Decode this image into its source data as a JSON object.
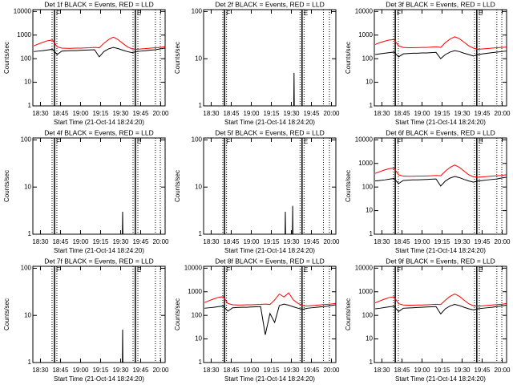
{
  "chart_data": [
    {
      "type": "line",
      "title": "Det 1f BLACK = Events, RED = LLD",
      "xlabel": "Start Time (21-Oct-14 18:24:20)",
      "ylabel": "Counts/sec",
      "log_y": true,
      "xlim": [
        24.33,
        123.3
      ],
      "ylim": [
        1,
        12000
      ],
      "xticks": [
        {
          "value": 30,
          "label": "18:30"
        },
        {
          "value": 45,
          "label": "18:45"
        },
        {
          "value": 60,
          "label": "19:00"
        },
        {
          "value": 75,
          "label": "19:15"
        },
        {
          "value": 90,
          "label": "19:30"
        },
        {
          "value": 105,
          "label": "19:45"
        },
        {
          "value": 120,
          "label": "20:00"
        }
      ],
      "yticks": [
        1,
        10,
        100,
        1000,
        10000
      ],
      "x": [
        25,
        28.5,
        32,
        35.5,
        39,
        42.5,
        46,
        49.5,
        53,
        56.5,
        60,
        63.5,
        67,
        70.5,
        74,
        77.5,
        81,
        84.5,
        88,
        91.5,
        95,
        98.5,
        102,
        105.5,
        109,
        112.5,
        116,
        119.5,
        123
      ],
      "series": [
        {
          "color": "#000000",
          "values": [
            200,
            210,
            220,
            235,
            250,
            150,
            210,
            215,
            220,
            220,
            225,
            230,
            235,
            240,
            120,
            200,
            260,
            300,
            270,
            230,
            200,
            180,
            200,
            210,
            220,
            230,
            240,
            260,
            280
          ]
        },
        {
          "color": "#ff0000",
          "values": [
            350,
            420,
            500,
            580,
            620,
            320,
            280,
            275,
            275,
            280,
            280,
            285,
            290,
            300,
            290,
            450,
            650,
            820,
            650,
            450,
            320,
            260,
            250,
            260,
            270,
            280,
            290,
            300,
            320
          ]
        }
      ],
      "markers": [
        {
          "label": "F",
          "x": 40.5
        },
        {
          "label": "E",
          "x": 101
        }
      ],
      "dotted_x": [
        38.7,
        42.3,
        99.3,
        102.9,
        116,
        119.7
      ]
    },
    {
      "type": "line",
      "title": "Det 2f BLACK = Events, RED = LLD",
      "xlabel": "Start Time (21-Oct-14 18:24:20)",
      "ylabel": "Counts/sec",
      "log_y": true,
      "xlim": [
        24.33,
        123.3
      ],
      "ylim": [
        1,
        110
      ],
      "xticks": [
        {
          "value": 30,
          "label": "18:30"
        },
        {
          "value": 45,
          "label": "18:45"
        },
        {
          "value": 60,
          "label": "19:00"
        },
        {
          "value": 75,
          "label": "19:15"
        },
        {
          "value": 90,
          "label": "19:30"
        },
        {
          "value": 105,
          "label": "19:45"
        },
        {
          "value": 120,
          "label": "20:00"
        }
      ],
      "yticks": [
        1,
        10,
        100
      ],
      "x": [
        91.8,
        92,
        92.2
      ],
      "series": [
        {
          "color": "#000000",
          "values": [
            1,
            5,
            1
          ]
        }
      ],
      "markers": [
        {
          "label": "F",
          "x": 40
        },
        {
          "label": "E",
          "x": 98
        }
      ],
      "dotted_x": [
        38.7,
        41.5,
        96.5,
        99.5,
        114,
        118.5
      ]
    },
    {
      "type": "line",
      "title": "Det 3f BLACK = Events, RED = LLD",
      "xlabel": "Start Time (21-Oct-14 18:24:20)",
      "ylabel": "Counts/sec",
      "log_y": true,
      "xlim": [
        24.33,
        123.3
      ],
      "ylim": [
        1,
        12000
      ],
      "xticks": [
        {
          "value": 30,
          "label": "18:30"
        },
        {
          "value": 45,
          "label": "18:45"
        },
        {
          "value": 60,
          "label": "19:00"
        },
        {
          "value": 75,
          "label": "19:15"
        },
        {
          "value": 90,
          "label": "19:30"
        },
        {
          "value": 105,
          "label": "19:45"
        },
        {
          "value": 120,
          "label": "20:00"
        }
      ],
      "yticks": [
        1,
        10,
        100,
        1000,
        10000
      ],
      "x": [
        25,
        28.5,
        32,
        35.5,
        39,
        42.5,
        46,
        49.5,
        53,
        56.5,
        60,
        63.5,
        67,
        70.5,
        74,
        77.5,
        81,
        84.5,
        88,
        91.5,
        95,
        98.5,
        102,
        105.5,
        109,
        112.5,
        116,
        119.5,
        123
      ],
      "series": [
        {
          "color": "#000000",
          "values": [
            150,
            160,
            170,
            180,
            190,
            120,
            160,
            165,
            170,
            170,
            175,
            175,
            180,
            185,
            100,
            150,
            190,
            220,
            200,
            170,
            150,
            130,
            150,
            160,
            170,
            180,
            190,
            200,
            210
          ]
        },
        {
          "color": "#ff0000",
          "values": [
            400,
            480,
            550,
            620,
            650,
            350,
            300,
            290,
            290,
            295,
            300,
            300,
            310,
            320,
            300,
            480,
            680,
            850,
            700,
            500,
            350,
            280,
            250,
            260,
            270,
            280,
            290,
            300,
            310
          ]
        }
      ],
      "markers": [
        {
          "label": "F",
          "x": 40
        },
        {
          "label": "E",
          "x": 101
        }
      ],
      "dotted_x": [
        38.7,
        42.3,
        99.3,
        102.9,
        116,
        119.7
      ]
    },
    {
      "type": "line",
      "title": "Det 4f BLACK = Events, RED = LLD",
      "xlabel": "Start Time (21-Oct-14 18:24:20)",
      "ylabel": "Counts/sec",
      "log_y": true,
      "xlim": [
        24.33,
        123.3
      ],
      "ylim": [
        1,
        110
      ],
      "xticks": [
        {
          "value": 30,
          "label": "18:30"
        },
        {
          "value": 45,
          "label": "18:45"
        },
        {
          "value": 60,
          "label": "19:00"
        },
        {
          "value": 75,
          "label": "19:15"
        },
        {
          "value": 90,
          "label": "19:30"
        },
        {
          "value": 105,
          "label": "19:45"
        },
        {
          "value": 120,
          "label": "20:00"
        }
      ],
      "yticks": [
        1,
        10,
        100
      ],
      "x": [
        91.3,
        91.5,
        91.7
      ],
      "series": [
        {
          "color": "#000000",
          "values": [
            1,
            3,
            1
          ]
        }
      ],
      "markers": [
        {
          "label": "F",
          "x": 40.5
        },
        {
          "label": "E",
          "x": 101
        }
      ],
      "dotted_x": [
        38.7,
        42.3,
        99.3,
        102.9,
        116,
        119.7
      ]
    },
    {
      "type": "line",
      "title": "Det 5f BLACK = Events, RED = LLD",
      "xlabel": "Start Time (21-Oct-14 18:24:20)",
      "ylabel": "Counts/sec",
      "log_y": true,
      "xlim": [
        24.33,
        123.3
      ],
      "ylim": [
        1,
        110
      ],
      "xticks": [
        {
          "value": 30,
          "label": "18:30"
        },
        {
          "value": 45,
          "label": "18:45"
        },
        {
          "value": 60,
          "label": "19:00"
        },
        {
          "value": 75,
          "label": "19:15"
        },
        {
          "value": 90,
          "label": "19:30"
        },
        {
          "value": 105,
          "label": "19:45"
        },
        {
          "value": 120,
          "label": "20:00"
        }
      ],
      "yticks": [
        1,
        10,
        100
      ],
      "x": [
        85.3,
        85.5,
        85.7,
        90.8,
        91,
        91.2
      ],
      "series": [
        {
          "color": "#000000",
          "values": [
            1,
            3,
            1,
            1,
            4,
            1
          ]
        }
      ],
      "markers": [
        {
          "label": "F",
          "x": 40
        },
        {
          "label": "E",
          "x": 98
        }
      ],
      "dotted_x": [
        38.7,
        41.5,
        96.5,
        99.5,
        114,
        118.5
      ]
    },
    {
      "type": "line",
      "title": "Det 6f BLACK = Events, RED = LLD",
      "xlabel": "Start Time (21-Oct-14 18:24:20)",
      "ylabel": "Counts/sec",
      "log_y": true,
      "xlim": [
        24.33,
        123.3
      ],
      "ylim": [
        1,
        12000
      ],
      "xticks": [
        {
          "value": 30,
          "label": "18:30"
        },
        {
          "value": 45,
          "label": "18:45"
        },
        {
          "value": 60,
          "label": "19:00"
        },
        {
          "value": 75,
          "label": "19:15"
        },
        {
          "value": 90,
          "label": "19:30"
        },
        {
          "value": 105,
          "label": "19:45"
        },
        {
          "value": 120,
          "label": "20:00"
        }
      ],
      "yticks": [
        1,
        10,
        100,
        1000,
        10000
      ],
      "x": [
        25,
        28.5,
        32,
        35.5,
        39,
        42.5,
        46,
        49.5,
        53,
        56.5,
        60,
        63.5,
        67,
        70.5,
        74,
        77.5,
        81,
        84.5,
        88,
        91.5,
        95,
        98.5,
        102,
        105.5,
        109,
        112.5,
        116,
        119.5,
        123
      ],
      "series": [
        {
          "color": "#000000",
          "values": [
            180,
            190,
            200,
            215,
            230,
            140,
            190,
            195,
            200,
            200,
            205,
            210,
            215,
            220,
            110,
            180,
            240,
            280,
            250,
            210,
            180,
            160,
            180,
            190,
            200,
            210,
            220,
            240,
            260
          ]
        },
        {
          "color": "#ff0000",
          "values": [
            380,
            450,
            530,
            600,
            640,
            330,
            290,
            285,
            285,
            290,
            290,
            295,
            300,
            310,
            300,
            470,
            680,
            860,
            680,
            470,
            330,
            270,
            260,
            270,
            280,
            290,
            300,
            310,
            330
          ]
        }
      ],
      "markers": [
        {
          "label": "F",
          "x": 40
        },
        {
          "label": "E",
          "x": 101
        }
      ],
      "dotted_x": [
        38.7,
        42.3,
        99.3,
        102.9,
        116,
        119.7
      ]
    },
    {
      "type": "line",
      "title": "Det 7f BLACK = Events, RED = LLD",
      "xlabel": "Start Time (21-Oct-14 18:24:20)",
      "ylabel": "Counts/sec",
      "log_y": true,
      "xlim": [
        24.33,
        123.3
      ],
      "ylim": [
        1,
        110
      ],
      "xticks": [
        {
          "value": 30,
          "label": "18:30"
        },
        {
          "value": 45,
          "label": "18:45"
        },
        {
          "value": 60,
          "label": "19:00"
        },
        {
          "value": 75,
          "label": "19:15"
        },
        {
          "value": 90,
          "label": "19:30"
        },
        {
          "value": 105,
          "label": "19:45"
        },
        {
          "value": 120,
          "label": "20:00"
        }
      ],
      "yticks": [
        1,
        10,
        100
      ],
      "x": [
        91.3,
        91.5,
        91.7
      ],
      "series": [
        {
          "color": "#000000",
          "values": [
            1,
            5,
            1
          ]
        }
      ],
      "markers": [
        {
          "label": "F",
          "x": 40.5
        },
        {
          "label": "E",
          "x": 101
        }
      ],
      "dotted_x": [
        38.7,
        42.3,
        99.3,
        102.9,
        116,
        119.7
      ]
    },
    {
      "type": "line",
      "title": "Det 8f BLACK = Events, RED = LLD",
      "xlabel": "Start Time (21-Oct-14 18:24:20)",
      "ylabel": "Counts/sec",
      "log_y": true,
      "xlim": [
        24.33,
        123.3
      ],
      "ylim": [
        1,
        12000
      ],
      "xticks": [
        {
          "value": 30,
          "label": "18:30"
        },
        {
          "value": 45,
          "label": "18:45"
        },
        {
          "value": 60,
          "label": "19:00"
        },
        {
          "value": 75,
          "label": "19:15"
        },
        {
          "value": 90,
          "label": "19:30"
        },
        {
          "value": 105,
          "label": "19:45"
        },
        {
          "value": 120,
          "label": "20:00"
        }
      ],
      "yticks": [
        1,
        10,
        100,
        1000,
        10000
      ],
      "x": [
        25,
        28.5,
        32,
        35.5,
        39,
        42.5,
        46,
        49.5,
        53,
        56.5,
        60,
        63.5,
        67,
        70.5,
        74,
        77.5,
        81,
        84.5,
        88,
        91.5,
        95,
        98.5,
        102,
        105.5,
        109,
        112.5,
        116,
        119.5,
        123
      ],
      "series": [
        {
          "color": "#000000",
          "values": [
            200,
            210,
            220,
            235,
            250,
            150,
            210,
            215,
            220,
            220,
            225,
            230,
            235,
            15,
            120,
            50,
            260,
            300,
            270,
            230,
            200,
            180,
            200,
            210,
            220,
            230,
            240,
            260,
            280
          ]
        },
        {
          "color": "#ff0000",
          "values": [
            350,
            420,
            500,
            580,
            620,
            320,
            280,
            275,
            275,
            280,
            280,
            285,
            290,
            300,
            290,
            450,
            800,
            600,
            900,
            450,
            320,
            260,
            250,
            260,
            270,
            280,
            290,
            300,
            320
          ]
        }
      ],
      "markers": [
        {
          "label": "F",
          "x": 40
        },
        {
          "label": "E",
          "x": 98
        }
      ],
      "dotted_x": [
        38.7,
        41.5,
        96.5,
        99.5,
        114,
        118.5
      ]
    },
    {
      "type": "line",
      "title": "Det 9f BLACK = Events, RED = LLD",
      "xlabel": "Start Time (21-Oct-14 18:24:20)",
      "ylabel": "Counts/sec",
      "log_y": true,
      "xlim": [
        24.33,
        123.3
      ],
      "ylim": [
        1,
        12000
      ],
      "xticks": [
        {
          "value": 30,
          "label": "18:30"
        },
        {
          "value": 45,
          "label": "18:45"
        },
        {
          "value": 60,
          "label": "19:00"
        },
        {
          "value": 75,
          "label": "19:15"
        },
        {
          "value": 90,
          "label": "19:30"
        },
        {
          "value": 105,
          "label": "19:45"
        },
        {
          "value": 120,
          "label": "20:00"
        }
      ],
      "yticks": [
        1,
        10,
        100,
        1000,
        10000
      ],
      "x": [
        25,
        28.5,
        32,
        35.5,
        39,
        42.5,
        46,
        49.5,
        53,
        56.5,
        60,
        63.5,
        67,
        70.5,
        74,
        77.5,
        81,
        84.5,
        88,
        91.5,
        95,
        98.5,
        102,
        105.5,
        109,
        112.5,
        116,
        119.5,
        123
      ],
      "series": [
        {
          "color": "#000000",
          "values": [
            190,
            200,
            215,
            230,
            245,
            145,
            200,
            205,
            210,
            215,
            220,
            225,
            230,
            235,
            115,
            190,
            250,
            290,
            260,
            220,
            190,
            170,
            190,
            200,
            210,
            220,
            235,
            250,
            270
          ]
        },
        {
          "color": "#ff0000",
          "values": [
            340,
            410,
            490,
            570,
            610,
            310,
            275,
            270,
            270,
            275,
            275,
            280,
            285,
            295,
            285,
            440,
            640,
            800,
            640,
            440,
            310,
            255,
            245,
            255,
            265,
            275,
            285,
            295,
            315
          ]
        }
      ],
      "markers": [
        {
          "label": "F",
          "x": 40
        },
        {
          "label": "E",
          "x": 101
        }
      ],
      "dotted_x": [
        38.7,
        42.3,
        99.3,
        102.9,
        116,
        119.7
      ]
    }
  ]
}
